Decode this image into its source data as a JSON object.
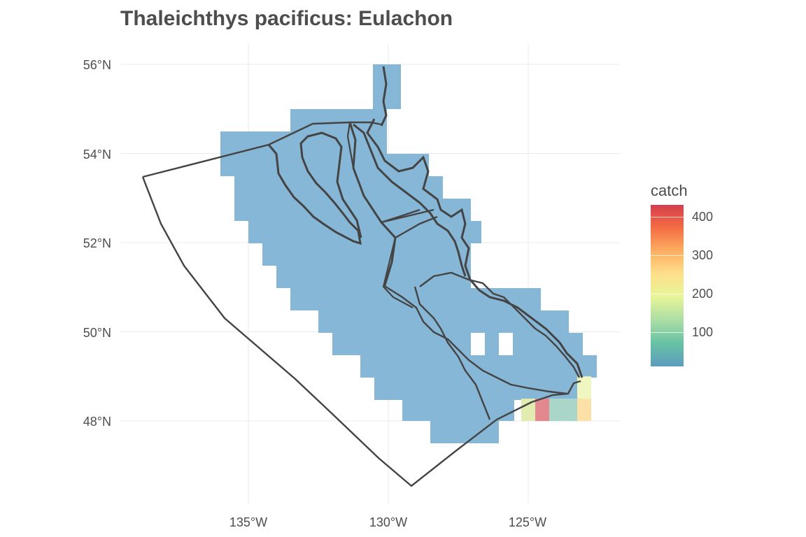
{
  "title": "Thaleichthys pacificus: Eulachon",
  "map": {
    "x_axis_ticks": [
      "135°W",
      "130°W",
      "125°W"
    ],
    "y_axis_ticks": [
      "56°N",
      "54°N",
      "52°N",
      "50°N",
      "48°N"
    ],
    "x_tick_values": [
      -135,
      -130,
      -125
    ],
    "y_tick_values": [
      56,
      54,
      52,
      50,
      48
    ],
    "extent": {
      "lon": [
        -139,
        -122
      ],
      "lat": [
        46.5,
        56.5
      ]
    },
    "cell_color_default": "#7fb3d5",
    "grid_on": true
  },
  "legend": {
    "title": "catch",
    "labels": [
      "400",
      "300",
      "200",
      "100"
    ],
    "label_values": [
      400,
      300,
      200,
      100
    ],
    "range": [
      5,
      430
    ],
    "colors": [
      "#d53e4f",
      "#f46d43",
      "#fdae61",
      "#fee08b",
      "#e6f598",
      "#abdda4",
      "#66c2a5",
      "#5e9bbd"
    ]
  },
  "highlight_cells": [
    {
      "lon": -125,
      "lat": 48,
      "catch": 190,
      "color": "#e2ecb0"
    },
    {
      "lon": -124.5,
      "lat": 48,
      "catch": 420,
      "color": "#e48890"
    },
    {
      "lon": -124,
      "lat": 48,
      "catch": 60,
      "color": "#a9d6c8"
    },
    {
      "lon": -123.5,
      "lat": 48,
      "catch": 60,
      "color": "#a9d6c8"
    },
    {
      "lon": -123,
      "lat": 48,
      "catch": 260,
      "color": "#fde0a8"
    },
    {
      "lon": -123,
      "lat": 48.5,
      "catch": 210,
      "color": "#eff6c0"
    }
  ]
}
